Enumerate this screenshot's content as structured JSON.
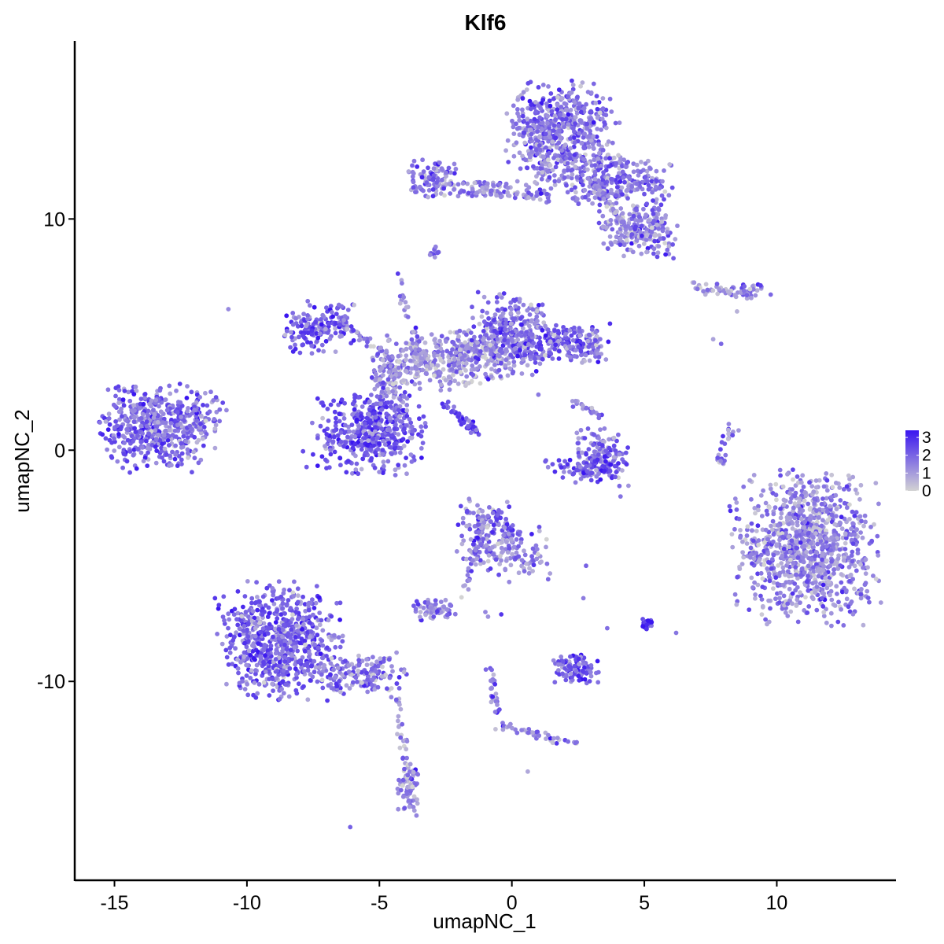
{
  "chart_data": {
    "type": "scatter",
    "title": "Klf6",
    "xlabel": "umapNC_1",
    "ylabel": "umapNC_2",
    "xlim": [
      -16.5,
      14.5
    ],
    "ylim": [
      -18.6,
      17.7
    ],
    "x_ticks": [
      -15,
      -10,
      -5,
      0,
      5,
      10
    ],
    "y_ticks": [
      -10,
      0,
      10
    ],
    "x_tick_labels": [
      "-15",
      "-10",
      "-5",
      "0",
      "5",
      "10"
    ],
    "y_tick_labels": [
      "-10",
      "0",
      "10"
    ],
    "grid": false,
    "legend": {
      "placement": "right",
      "type": "colorbar",
      "labels": [
        "3",
        "2",
        "1",
        "0"
      ],
      "values": [
        3,
        2,
        1,
        0
      ],
      "range": [
        0,
        3.4
      ]
    },
    "color_low": "#d3d3d3",
    "color_high": "#3a16f0",
    "clusters": [
      {
        "cx": -13.4,
        "cy": 1.0,
        "sx": 1.0,
        "sy": 0.9,
        "n": 500,
        "expr": 1.9
      },
      {
        "cx": -11.8,
        "cy": 1.7,
        "sx": 0.5,
        "sy": 0.45,
        "n": 60,
        "expr": 1.6
      },
      {
        "cx": -7.3,
        "cy": 5.3,
        "sx": 0.65,
        "sy": 0.55,
        "n": 160,
        "expr": 2.1
      },
      {
        "cx": -5.4,
        "cy": 0.7,
        "sx": 1.0,
        "sy": 0.85,
        "n": 450,
        "expr": 2.3
      },
      {
        "cx": -4.6,
        "cy": 3.0,
        "sx": 0.4,
        "sy": 0.9,
        "n": 150,
        "expr": 1.4
      },
      {
        "cx": -2.9,
        "cy": 3.8,
        "sx": 0.9,
        "sy": 0.6,
        "n": 200,
        "expr": 1.0
      },
      {
        "cx": -1.0,
        "cy": 4.2,
        "sx": 0.9,
        "sy": 0.6,
        "n": 250,
        "expr": 1.4
      },
      {
        "cx": 0.0,
        "cy": 5.3,
        "sx": 0.7,
        "sy": 0.7,
        "n": 220,
        "expr": 1.8
      },
      {
        "cx": 1.9,
        "cy": 4.6,
        "sx": 0.9,
        "sy": 0.4,
        "n": 220,
        "expr": 1.9
      },
      {
        "cx": 1.9,
        "cy": 14.0,
        "sx": 1.0,
        "sy": 0.9,
        "n": 480,
        "expr": 1.8
      },
      {
        "cx": 1.2,
        "cy": 12.6,
        "sx": 0.5,
        "sy": 0.9,
        "n": 120,
        "expr": 1.5
      },
      {
        "cx": 3.9,
        "cy": 11.6,
        "sx": 1.0,
        "sy": 0.55,
        "n": 260,
        "expr": 1.7
      },
      {
        "cx": 4.8,
        "cy": 9.5,
        "sx": 0.75,
        "sy": 0.55,
        "n": 200,
        "expr": 1.4
      },
      {
        "cx": -3.0,
        "cy": 11.8,
        "sx": 0.45,
        "sy": 0.4,
        "n": 100,
        "expr": 1.6
      },
      {
        "cx": -1.2,
        "cy": 11.3,
        "sx": 0.7,
        "sy": 0.18,
        "n": 60,
        "expr": 1.4
      },
      {
        "cx": 3.4,
        "cy": -0.3,
        "sx": 0.5,
        "sy": 0.6,
        "n": 140,
        "expr": 1.7
      },
      {
        "cx": 2.8,
        "cy": -0.8,
        "sx": 0.7,
        "sy": 0.25,
        "n": 70,
        "expr": 2.3
      },
      {
        "cx": -8.8,
        "cy": -8.3,
        "sx": 1.1,
        "sy": 1.2,
        "n": 700,
        "expr": 1.9
      },
      {
        "cx": -5.6,
        "cy": -9.7,
        "sx": 0.8,
        "sy": 0.45,
        "n": 150,
        "expr": 1.5
      },
      {
        "cx": -3.9,
        "cy": -14.6,
        "sx": 0.2,
        "sy": 0.45,
        "n": 70,
        "expr": 1.3
      },
      {
        "cx": -0.8,
        "cy": -3.7,
        "sx": 0.6,
        "sy": 0.75,
        "n": 180,
        "expr": 1.6
      },
      {
        "cx": 0.4,
        "cy": -4.5,
        "sx": 0.5,
        "sy": 0.55,
        "n": 60,
        "expr": 1.5
      },
      {
        "cx": -2.9,
        "cy": -6.9,
        "sx": 0.4,
        "sy": 0.22,
        "n": 60,
        "expr": 1.5
      },
      {
        "cx": 2.4,
        "cy": -9.5,
        "sx": 0.4,
        "sy": 0.3,
        "n": 100,
        "expr": 2.2
      },
      {
        "cx": 11.0,
        "cy": -4.2,
        "sx": 1.3,
        "sy": 1.55,
        "n": 1000,
        "expr": 1.3
      },
      {
        "cx": 8.7,
        "cy": 6.9,
        "sx": 0.5,
        "sy": 0.2,
        "n": 40,
        "expr": 1.5
      },
      {
        "cx": 5.1,
        "cy": -7.5,
        "sx": 0.1,
        "sy": 0.15,
        "n": 25,
        "expr": 3.1
      },
      {
        "cx": -2.9,
        "cy": 8.6,
        "sx": 0.1,
        "sy": 0.12,
        "n": 12,
        "expr": 1.8
      }
    ],
    "trails": [
      {
        "from": [
          -4.3,
          7.5
        ],
        "to": [
          -3.4,
          3.5
        ],
        "n": 40,
        "expr": 1.5
      },
      {
        "from": [
          -2.5,
          2.0
        ],
        "to": [
          -1.3,
          0.7
        ],
        "n": 45,
        "expr": 2.4
      },
      {
        "from": [
          -4.8,
          4.2
        ],
        "to": [
          -6.5,
          5.5
        ],
        "n": 40,
        "expr": 1.5
      },
      {
        "from": [
          -1.5,
          11.1
        ],
        "to": [
          1.5,
          11.0
        ],
        "n": 40,
        "expr": 1.4
      },
      {
        "from": [
          3.0,
          11.6
        ],
        "to": [
          4.3,
          9.6
        ],
        "n": 50,
        "expr": 1.2
      },
      {
        "from": [
          -4.3,
          -10.7
        ],
        "to": [
          -3.9,
          -14.3
        ],
        "n": 35,
        "expr": 1.3
      },
      {
        "from": [
          -1.0,
          -2.7
        ],
        "to": [
          -1.8,
          -6.4
        ],
        "n": 35,
        "expr": 1.4
      },
      {
        "from": [
          -0.9,
          -9.3
        ],
        "to": [
          -0.4,
          -12.0
        ],
        "n": 30,
        "expr": 1.6
      },
      {
        "from": [
          -0.4,
          -11.9
        ],
        "to": [
          2.5,
          -12.7
        ],
        "n": 40,
        "expr": 1.2
      },
      {
        "from": [
          8.3,
          1.1
        ],
        "to": [
          7.8,
          -0.6
        ],
        "n": 25,
        "expr": 1.3
      },
      {
        "from": [
          6.8,
          7.1
        ],
        "to": [
          8.3,
          6.8
        ],
        "n": 25,
        "expr": 0.8
      },
      {
        "from": [
          2.3,
          2.1
        ],
        "to": [
          3.5,
          1.4
        ],
        "n": 20,
        "expr": 1.4
      }
    ],
    "outliers": [
      [
        -10.7,
        6.1
      ],
      [
        -3.6,
        -15.8
      ],
      [
        -6.1,
        -16.3
      ],
      [
        0.6,
        -13.9
      ],
      [
        7.6,
        4.8
      ],
      [
        8.5,
        6.0
      ],
      [
        4.1,
        -2.0
      ],
      [
        -1.0,
        -7.0
      ],
      [
        -0.9,
        -7.2
      ],
      [
        -0.4,
        -7.1
      ],
      [
        3.6,
        -7.7
      ],
      [
        6.2,
        -7.9
      ],
      [
        5.1,
        9.3
      ],
      [
        6.1,
        8.3
      ],
      [
        -0.1,
        -5.7
      ],
      [
        2.8,
        -5.0
      ],
      [
        1.0,
        2.4
      ],
      [
        8.9,
        -3.3
      ],
      [
        7.9,
        4.6
      ],
      [
        2.7,
        -6.4
      ]
    ]
  }
}
